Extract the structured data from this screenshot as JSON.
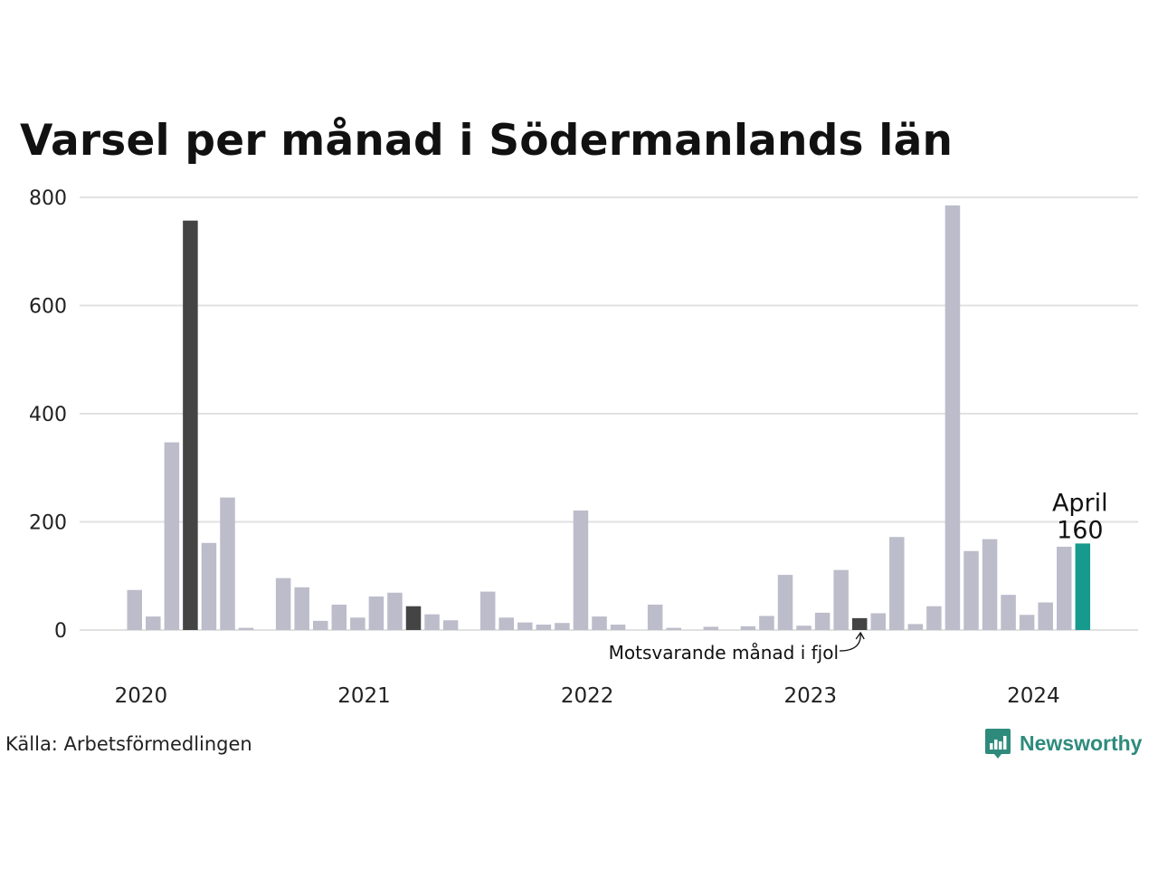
{
  "title": "Varsel per månad i Södermanlands län",
  "source": "Källa: Arbetsförmedlingen",
  "brand": {
    "name": "Newsworthy",
    "icon": "newsworthy-logo-icon"
  },
  "colors": {
    "bar": "#bcbccb",
    "highlight_previous_year": "#444444",
    "highlight_current": "#169a8d",
    "grid": "#e1e1e1",
    "brand": "#2e8b7c"
  },
  "annotations": {
    "current": {
      "label": "April",
      "value_label": "160"
    },
    "previous_year": {
      "label": "Motsvarande månad i fjol"
    }
  },
  "chart_data": {
    "type": "bar",
    "title": "Varsel per månad i Södermanlands län",
    "xlabel": "",
    "ylabel": "",
    "ylim": [
      0,
      800
    ],
    "yticks": [
      0,
      200,
      400,
      600,
      800
    ],
    "grid": true,
    "legend": "none",
    "year_labels": [
      "2020",
      "2021",
      "2022",
      "2023",
      "2024"
    ],
    "categories": [
      "2020-01",
      "2020-02",
      "2020-03",
      "2020-04",
      "2020-05",
      "2020-06",
      "2020-07",
      "2020-08",
      "2020-09",
      "2020-10",
      "2020-11",
      "2020-12",
      "2021-01",
      "2021-02",
      "2021-03",
      "2021-04",
      "2021-05",
      "2021-06",
      "2021-07",
      "2021-08",
      "2021-09",
      "2021-10",
      "2021-11",
      "2021-12",
      "2022-01",
      "2022-02",
      "2022-03",
      "2022-04",
      "2022-05",
      "2022-06",
      "2022-07",
      "2022-08",
      "2022-09",
      "2022-10",
      "2022-11",
      "2022-12",
      "2023-01",
      "2023-02",
      "2023-03",
      "2023-04",
      "2023-05",
      "2023-06",
      "2023-07",
      "2023-08",
      "2023-09",
      "2023-10",
      "2023-11",
      "2023-12",
      "2024-01",
      "2024-02",
      "2024-03",
      "2024-04"
    ],
    "values": [
      74,
      25,
      347,
      757,
      161,
      245,
      4,
      0,
      96,
      79,
      17,
      47,
      23,
      62,
      69,
      44,
      29,
      18,
      0,
      71,
      23,
      14,
      10,
      13,
      221,
      25,
      10,
      0,
      47,
      4,
      0,
      6,
      0,
      7,
      26,
      102,
      8,
      32,
      111,
      22,
      31,
      172,
      11,
      44,
      785,
      146,
      168,
      65,
      28,
      51,
      154,
      160
    ],
    "highlight": {
      "previous_year": [
        "2020-04",
        "2021-04",
        "2022-04",
        "2023-04"
      ],
      "current": "2024-04"
    }
  }
}
